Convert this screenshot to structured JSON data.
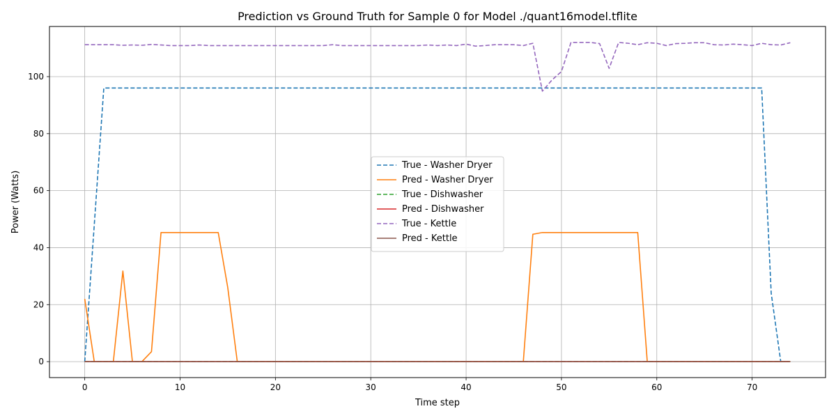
{
  "chart_data": {
    "type": "line",
    "title": "Prediction vs Ground Truth for Sample 0 for Model ./quant16model.tflite",
    "xlabel": "Time step",
    "ylabel": "Power (Watts)",
    "xlim": [
      -3.7,
      77.7
    ],
    "ylim": [
      -5.6,
      117.6
    ],
    "xticks": [
      0,
      10,
      20,
      30,
      40,
      50,
      60,
      70
    ],
    "yticks": [
      0,
      20,
      40,
      60,
      80,
      100
    ],
    "grid": true,
    "legend_position": "center",
    "series": [
      {
        "name": "True - Washer Dryer",
        "color": "#1f77b4",
        "dash": true,
        "values": [
          0,
          48,
          96,
          96,
          96,
          96,
          96,
          96,
          96,
          96,
          96,
          96,
          96,
          96,
          96,
          96,
          96,
          96,
          96,
          96,
          96,
          96,
          96,
          96,
          96,
          96,
          96,
          96,
          96,
          96,
          96,
          96,
          96,
          96,
          96,
          96,
          96,
          96,
          96,
          96,
          96,
          96,
          96,
          96,
          96,
          96,
          96,
          96,
          96,
          96,
          96,
          96,
          96,
          96,
          96,
          96,
          96,
          96,
          96,
          96,
          96,
          96,
          96,
          96,
          96,
          96,
          96,
          96,
          96,
          96,
          96,
          96,
          24,
          0,
          0
        ]
      },
      {
        "name": "Pred - Washer Dryer",
        "color": "#ff7f0e",
        "dash": false,
        "values": [
          22,
          0,
          0,
          0,
          31.8,
          0,
          0,
          3.5,
          45.3,
          45.3,
          45.3,
          45.3,
          45.3,
          45.3,
          45.3,
          26,
          0,
          0,
          0,
          0,
          0,
          0,
          0,
          0,
          0,
          0,
          0,
          0,
          0,
          0,
          0,
          0,
          0,
          0,
          0,
          0,
          0,
          0,
          0,
          0,
          0,
          0,
          0,
          0,
          0,
          0,
          0,
          44.7,
          45.3,
          45.3,
          45.3,
          45.3,
          45.3,
          45.3,
          45.3,
          45.3,
          45.3,
          45.3,
          45.3,
          0,
          0,
          0,
          0,
          0,
          0,
          0,
          0,
          0,
          0,
          0,
          0,
          0,
          0,
          0,
          0
        ]
      },
      {
        "name": "True - Dishwasher",
        "color": "#2ca02c",
        "dash": true,
        "values": [
          0,
          0,
          0,
          0,
          0,
          0,
          0,
          0,
          0,
          0,
          0,
          0,
          0,
          0,
          0,
          0,
          0,
          0,
          0,
          0,
          0,
          0,
          0,
          0,
          0,
          0,
          0,
          0,
          0,
          0,
          0,
          0,
          0,
          0,
          0,
          0,
          0,
          0,
          0,
          0,
          0,
          0,
          0,
          0,
          0,
          0,
          0,
          0,
          0,
          0,
          0,
          0,
          0,
          0,
          0,
          0,
          0,
          0,
          0,
          0,
          0,
          0,
          0,
          0,
          0,
          0,
          0,
          0,
          0,
          0,
          0,
          0,
          0,
          0,
          0
        ]
      },
      {
        "name": "Pred - Dishwasher",
        "color": "#d62728",
        "dash": false,
        "values": [
          0,
          0,
          0,
          0,
          0,
          0,
          0,
          0,
          0,
          0,
          0,
          0,
          0,
          0,
          0,
          0,
          0,
          0,
          0,
          0,
          0,
          0,
          0,
          0,
          0,
          0,
          0,
          0,
          0,
          0,
          0,
          0,
          0,
          0,
          0,
          0,
          0,
          0,
          0,
          0,
          0,
          0,
          0,
          0,
          0,
          0,
          0,
          0,
          0,
          0,
          0,
          0,
          0,
          0,
          0,
          0,
          0,
          0,
          0,
          0,
          0,
          0,
          0,
          0,
          0,
          0,
          0,
          0,
          0,
          0,
          0,
          0,
          0,
          0,
          0
        ]
      },
      {
        "name": "True - Kettle",
        "color": "#9467bd",
        "dash": true,
        "values": [
          111.2,
          111.2,
          111.2,
          111.2,
          111,
          111.1,
          111,
          111.3,
          111.1,
          110.9,
          110.9,
          110.9,
          111.1,
          110.9,
          110.9,
          110.9,
          110.9,
          110.9,
          110.9,
          110.9,
          110.9,
          110.9,
          110.9,
          110.9,
          110.9,
          110.9,
          111.2,
          110.9,
          110.9,
          110.9,
          110.9,
          110.9,
          110.9,
          110.9,
          110.9,
          110.9,
          111.1,
          110.9,
          111.1,
          110.9,
          111.4,
          110.7,
          110.9,
          111.2,
          111.2,
          111.2,
          110.9,
          111.7,
          94.9,
          98.8,
          101.8,
          112,
          112,
          112,
          111.6,
          102.9,
          112,
          111.7,
          111.2,
          111.9,
          111.7,
          110.9,
          111.6,
          111.7,
          111.9,
          111.9,
          111.2,
          111.1,
          111.4,
          111.2,
          110.9,
          111.7,
          111.2,
          111.1,
          111.9
        ]
      },
      {
        "name": "Pred - Kettle",
        "color": "#8c564b",
        "dash": false,
        "values": [
          0,
          0,
          0,
          0,
          0,
          0,
          0,
          0,
          0,
          0,
          0,
          0,
          0,
          0,
          0,
          0,
          0,
          0,
          0,
          0,
          0,
          0,
          0,
          0,
          0,
          0,
          0,
          0,
          0,
          0,
          0,
          0,
          0,
          0,
          0,
          0,
          0,
          0,
          0,
          0,
          0,
          0,
          0,
          0,
          0,
          0,
          0,
          0,
          0,
          0,
          0,
          0,
          0,
          0,
          0,
          0,
          0,
          0,
          0,
          0,
          0,
          0,
          0,
          0,
          0,
          0,
          0,
          0,
          0,
          0,
          0,
          0,
          0,
          0,
          0
        ]
      }
    ]
  }
}
